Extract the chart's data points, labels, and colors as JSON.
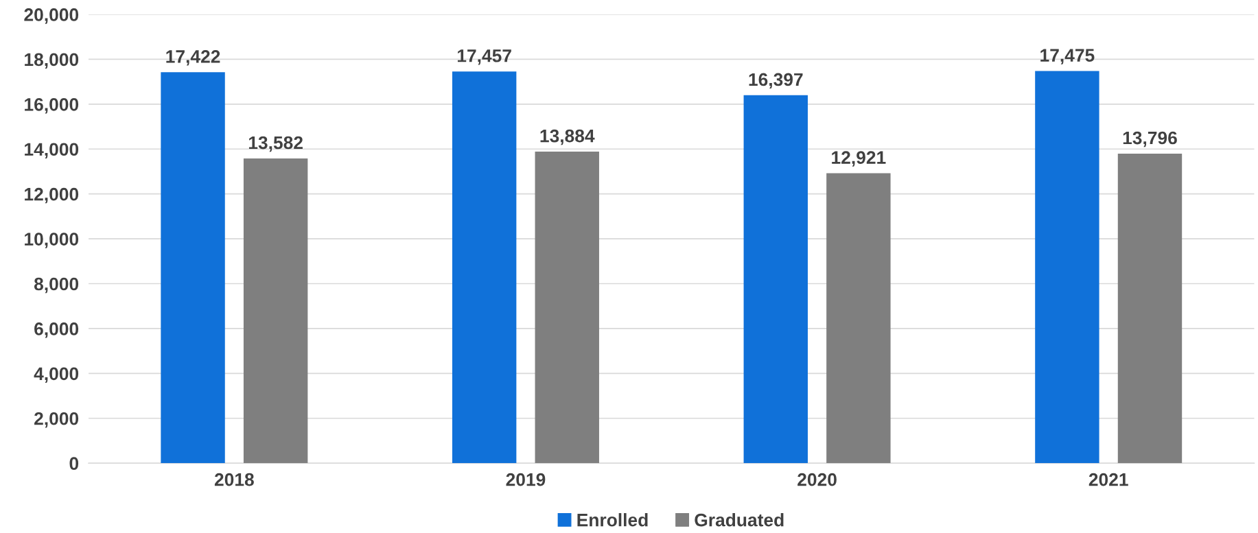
{
  "chart_data": {
    "type": "bar",
    "categories": [
      "2018",
      "2019",
      "2020",
      "2021"
    ],
    "series": [
      {
        "name": "Enrolled",
        "color": "#1071d9",
        "values": [
          17422,
          17457,
          16397,
          17475
        ]
      },
      {
        "name": "Graduated",
        "color": "#7f7f7f",
        "values": [
          13582,
          13884,
          12921,
          13796
        ]
      }
    ],
    "value_labels": [
      [
        "17,422",
        "17,457",
        "16,397",
        "17,475"
      ],
      [
        "13,582",
        "13,884",
        "12,921",
        "13,796"
      ]
    ],
    "ylim": [
      0,
      20000
    ],
    "yticks": [
      {
        "value": 0,
        "label": "0"
      },
      {
        "value": 2000,
        "label": "2,000"
      },
      {
        "value": 4000,
        "label": "4,000"
      },
      {
        "value": 6000,
        "label": "6,000"
      },
      {
        "value": 8000,
        "label": "8,000"
      },
      {
        "value": 10000,
        "label": "10,000"
      },
      {
        "value": 12000,
        "label": "12,000"
      },
      {
        "value": 14000,
        "label": "14,000"
      },
      {
        "value": 16000,
        "label": "16,000"
      },
      {
        "value": 18000,
        "label": "18,000"
      },
      {
        "value": 20000,
        "label": "20,000"
      }
    ],
    "grid": "y",
    "legend": "bottom"
  }
}
